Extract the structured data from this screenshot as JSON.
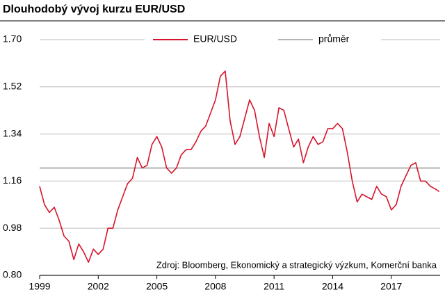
{
  "chart_data": {
    "type": "line",
    "title": "Dlouhodobý vývoj kurzu EUR/USD",
    "annotation": "Zdroj: Bloomberg, Ekonomický a strategický výzkum, Komerční banka",
    "x": [
      1999.0,
      1999.25,
      1999.5,
      1999.75,
      2000.0,
      2000.25,
      2000.5,
      2000.75,
      2001.0,
      2001.25,
      2001.5,
      2001.75,
      2002.0,
      2002.25,
      2002.5,
      2002.75,
      2003.0,
      2003.25,
      2003.5,
      2003.75,
      2004.0,
      2004.25,
      2004.5,
      2004.75,
      2005.0,
      2005.25,
      2005.5,
      2005.75,
      2006.0,
      2006.25,
      2006.5,
      2006.75,
      2007.0,
      2007.25,
      2007.5,
      2007.75,
      2008.0,
      2008.25,
      2008.5,
      2008.75,
      2009.0,
      2009.25,
      2009.5,
      2009.75,
      2010.0,
      2010.25,
      2010.5,
      2010.75,
      2011.0,
      2011.25,
      2011.5,
      2011.75,
      2012.0,
      2012.25,
      2012.5,
      2012.75,
      2013.0,
      2013.25,
      2013.5,
      2013.75,
      2014.0,
      2014.25,
      2014.5,
      2014.75,
      2015.0,
      2015.25,
      2015.5,
      2015.75,
      2016.0,
      2016.25,
      2016.5,
      2016.75,
      2017.0,
      2017.25,
      2017.5,
      2017.75,
      2018.0,
      2018.25,
      2018.5,
      2018.75,
      2019.0,
      2019.25,
      2019.45
    ],
    "series": [
      {
        "name": "EUR/USD",
        "color": "#d5142b",
        "values": [
          1.14,
          1.07,
          1.04,
          1.06,
          1.01,
          0.95,
          0.93,
          0.86,
          0.92,
          0.89,
          0.85,
          0.9,
          0.88,
          0.9,
          0.98,
          0.98,
          1.05,
          1.1,
          1.15,
          1.17,
          1.25,
          1.21,
          1.22,
          1.3,
          1.33,
          1.29,
          1.21,
          1.19,
          1.21,
          1.26,
          1.28,
          1.28,
          1.31,
          1.35,
          1.37,
          1.42,
          1.47,
          1.56,
          1.58,
          1.39,
          1.3,
          1.33,
          1.4,
          1.47,
          1.43,
          1.33,
          1.25,
          1.38,
          1.33,
          1.44,
          1.43,
          1.36,
          1.29,
          1.32,
          1.23,
          1.29,
          1.33,
          1.3,
          1.31,
          1.36,
          1.36,
          1.38,
          1.36,
          1.27,
          1.16,
          1.08,
          1.11,
          1.1,
          1.09,
          1.14,
          1.11,
          1.1,
          1.05,
          1.07,
          1.14,
          1.18,
          1.22,
          1.23,
          1.16,
          1.16,
          1.14,
          1.13,
          1.12
        ]
      }
    ],
    "reference_lines": [
      {
        "name": "průměr",
        "value": 1.21,
        "color": "#b3b3b3"
      }
    ],
    "xlim": [
      1999,
      2019.5
    ],
    "xticks": [
      1999,
      2002,
      2005,
      2008,
      2011,
      2014,
      2017
    ],
    "ylim": [
      0.8,
      1.7
    ],
    "yticks": [
      {
        "value": 0.8,
        "label": "0.80"
      },
      0.98,
      1.16,
      1.34,
      1.52,
      {
        "value": 1.7,
        "label": "1.70"
      }
    ],
    "grid": true
  }
}
